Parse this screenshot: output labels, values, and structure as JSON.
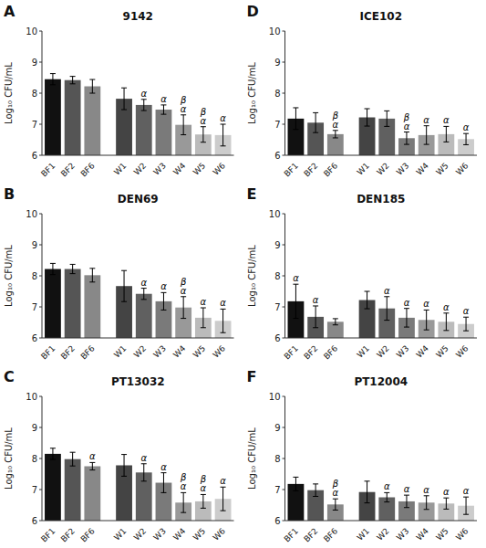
{
  "chart_data": [
    {
      "type": "bar",
      "panel_label": "A",
      "title": "9142",
      "ylabel": "Log₁₀ CFU/mL",
      "categories": [
        "BF1",
        "BF2",
        "BF6",
        "W1",
        "W2",
        "W3",
        "W4",
        "W5",
        "W6"
      ],
      "values": [
        8.45,
        8.42,
        8.22,
        7.82,
        7.62,
        7.47,
        6.98,
        6.67,
        6.65
      ],
      "errors": [
        0.18,
        0.12,
        0.22,
        0.35,
        0.18,
        0.15,
        0.32,
        0.25,
        0.35
      ],
      "colors": [
        "#111111",
        "#555555",
        "#888888",
        "#444444",
        "#606060",
        "#7a7a7a",
        "#999999",
        "#bbbbbb",
        "#cccccc"
      ],
      "annotations": [
        {
          "category": "W2",
          "text": "α"
        },
        {
          "category": "W3",
          "text": "α"
        },
        {
          "category": "W4",
          "text": "α"
        },
        {
          "category": "W4",
          "text": "β"
        },
        {
          "category": "W5",
          "text": "α"
        },
        {
          "category": "W5",
          "text": "β"
        },
        {
          "category": "W6",
          "text": "α"
        }
      ],
      "ylim": [
        6,
        10
      ],
      "yticks": [
        6,
        7,
        8,
        9,
        10
      ],
      "grid": false
    },
    {
      "type": "bar",
      "panel_label": "B",
      "title": "DEN69",
      "ylabel": "Log₁₀ CFU/mL",
      "categories": [
        "BF1",
        "BF2",
        "BF6",
        "W1",
        "W2",
        "W3",
        "W4",
        "W5",
        "W6"
      ],
      "values": [
        8.22,
        8.22,
        8.02,
        7.67,
        7.42,
        7.18,
        6.98,
        6.65,
        6.55
      ],
      "errors": [
        0.18,
        0.15,
        0.22,
        0.5,
        0.18,
        0.28,
        0.35,
        0.32,
        0.38
      ],
      "colors": [
        "#111111",
        "#555555",
        "#888888",
        "#444444",
        "#606060",
        "#7a7a7a",
        "#999999",
        "#bbbbbb",
        "#cccccc"
      ],
      "annotations": [
        {
          "category": "W2",
          "text": "α"
        },
        {
          "category": "W3",
          "text": "α"
        },
        {
          "category": "W4",
          "text": "α"
        },
        {
          "category": "W4",
          "text": "β"
        },
        {
          "category": "W5",
          "text": "α"
        },
        {
          "category": "W6",
          "text": "α"
        }
      ],
      "ylim": [
        6,
        10
      ],
      "yticks": [
        6,
        7,
        8,
        9,
        10
      ],
      "grid": false
    },
    {
      "type": "bar",
      "panel_label": "C",
      "title": "PT13032",
      "ylabel": "Log₁₀ CFU/mL",
      "categories": [
        "BF1",
        "BF2",
        "BF6",
        "W1",
        "W2",
        "W3",
        "W4",
        "W5",
        "W6"
      ],
      "values": [
        8.15,
        7.98,
        7.75,
        7.78,
        7.55,
        7.22,
        6.58,
        6.62,
        6.7
      ],
      "errors": [
        0.18,
        0.22,
        0.12,
        0.35,
        0.28,
        0.32,
        0.32,
        0.22,
        0.38
      ],
      "colors": [
        "#111111",
        "#555555",
        "#888888",
        "#444444",
        "#606060",
        "#7a7a7a",
        "#999999",
        "#bbbbbb",
        "#cccccc"
      ],
      "annotations": [
        {
          "category": "BF6",
          "text": "α"
        },
        {
          "category": "W2",
          "text": "α"
        },
        {
          "category": "W3",
          "text": "α"
        },
        {
          "category": "W4",
          "text": "α"
        },
        {
          "category": "W4",
          "text": "β"
        },
        {
          "category": "W5",
          "text": "α"
        },
        {
          "category": "W5",
          "text": "β"
        },
        {
          "category": "W6",
          "text": "α"
        }
      ],
      "ylim": [
        6,
        10
      ],
      "yticks": [
        6,
        7,
        8,
        9,
        10
      ],
      "grid": false
    },
    {
      "type": "bar",
      "panel_label": "D",
      "title": "ICE102",
      "ylabel": "Log₁₀ CFU/mL",
      "categories": [
        "BF1",
        "BF2",
        "BF6",
        "W1",
        "W2",
        "W3",
        "W4",
        "W5",
        "W6"
      ],
      "values": [
        7.18,
        7.05,
        6.68,
        7.22,
        7.18,
        6.55,
        6.65,
        6.68,
        6.52
      ],
      "errors": [
        0.35,
        0.32,
        0.12,
        0.28,
        0.25,
        0.2,
        0.3,
        0.25,
        0.18
      ],
      "colors": [
        "#111111",
        "#555555",
        "#888888",
        "#444444",
        "#606060",
        "#7a7a7a",
        "#999999",
        "#bbbbbb",
        "#cccccc"
      ],
      "annotations": [
        {
          "category": "BF6",
          "text": "α"
        },
        {
          "category": "BF6",
          "text": "β"
        },
        {
          "category": "W3",
          "text": "α"
        },
        {
          "category": "W3",
          "text": "β"
        },
        {
          "category": "W4",
          "text": "α"
        },
        {
          "category": "W5",
          "text": "α"
        },
        {
          "category": "W6",
          "text": "α"
        }
      ],
      "ylim": [
        6,
        10
      ],
      "yticks": [
        6,
        7,
        8,
        9,
        10
      ],
      "grid": false
    },
    {
      "type": "bar",
      "panel_label": "E",
      "title": "DEN185",
      "ylabel": "Log₁₀ CFU/mL",
      "categories": [
        "BF1",
        "BF2",
        "BF6",
        "W1",
        "W2",
        "W3",
        "W4",
        "W5",
        "W6"
      ],
      "values": [
        7.18,
        6.68,
        6.52,
        7.22,
        6.95,
        6.65,
        6.58,
        6.52,
        6.45
      ],
      "errors": [
        0.55,
        0.35,
        0.1,
        0.28,
        0.38,
        0.3,
        0.32,
        0.28,
        0.22
      ],
      "colors": [
        "#111111",
        "#555555",
        "#888888",
        "#444444",
        "#606060",
        "#7a7a7a",
        "#999999",
        "#bbbbbb",
        "#cccccc"
      ],
      "annotations": [
        {
          "category": "BF1",
          "text": "α"
        },
        {
          "category": "BF2",
          "text": "α"
        },
        {
          "category": "W2",
          "text": "α"
        },
        {
          "category": "W3",
          "text": "α"
        },
        {
          "category": "W4",
          "text": "α"
        },
        {
          "category": "W5",
          "text": "α"
        },
        {
          "category": "W6",
          "text": "α"
        }
      ],
      "ylim": [
        6,
        10
      ],
      "yticks": [
        6,
        7,
        8,
        9,
        10
      ],
      "grid": false
    },
    {
      "type": "bar",
      "panel_label": "F",
      "title": "PT12004",
      "ylabel": "Log₁₀ CFU/mL",
      "categories": [
        "BF1",
        "BF2",
        "BF6",
        "W1",
        "W2",
        "W3",
        "W4",
        "W5",
        "W6"
      ],
      "values": [
        7.18,
        6.98,
        6.52,
        6.92,
        6.75,
        6.62,
        6.58,
        6.55,
        6.48
      ],
      "errors": [
        0.22,
        0.2,
        0.18,
        0.35,
        0.15,
        0.2,
        0.22,
        0.18,
        0.28
      ],
      "colors": [
        "#111111",
        "#555555",
        "#888888",
        "#444444",
        "#606060",
        "#7a7a7a",
        "#999999",
        "#bbbbbb",
        "#cccccc"
      ],
      "annotations": [
        {
          "category": "BF6",
          "text": "α"
        },
        {
          "category": "BF6",
          "text": "β"
        },
        {
          "category": "W2",
          "text": "α"
        },
        {
          "category": "W3",
          "text": "α"
        },
        {
          "category": "W4",
          "text": "α"
        },
        {
          "category": "W5",
          "text": "α"
        },
        {
          "category": "W6",
          "text": "α"
        }
      ],
      "ylim": [
        6,
        10
      ],
      "yticks": [
        6,
        7,
        8,
        9,
        10
      ],
      "grid": false
    }
  ]
}
